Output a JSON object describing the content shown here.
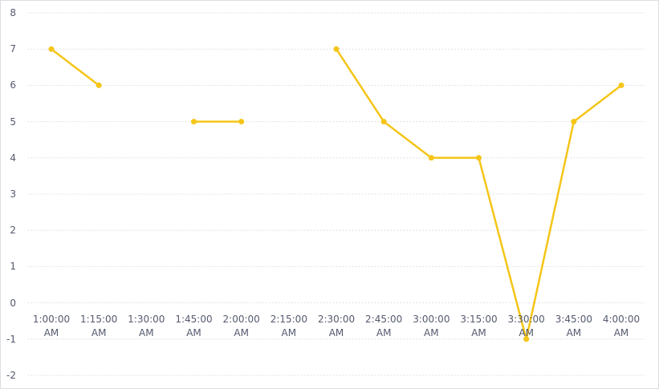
{
  "chart_data": {
    "type": "line",
    "categories": [
      "1:00:00 AM",
      "1:15:00 AM",
      "1:30:00 AM",
      "1:45:00 AM",
      "2:00:00 AM",
      "2:15:00 AM",
      "2:30:00 AM",
      "2:45:00 AM",
      "3:00:00 AM",
      "3:15:00 AM",
      "3:30:00 AM",
      "3:45:00 AM",
      "4:00:00 AM"
    ],
    "series": [
      {
        "color": "#f5c518",
        "values": [
          7,
          6,
          null,
          5,
          5,
          null,
          7,
          5,
          4,
          4,
          -1,
          5,
          6
        ]
      }
    ],
    "ylim": [
      -2,
      8
    ],
    "yticks": [
      -2,
      -1,
      0,
      1,
      2,
      3,
      4,
      5,
      6,
      7,
      8
    ],
    "grid": true
  }
}
